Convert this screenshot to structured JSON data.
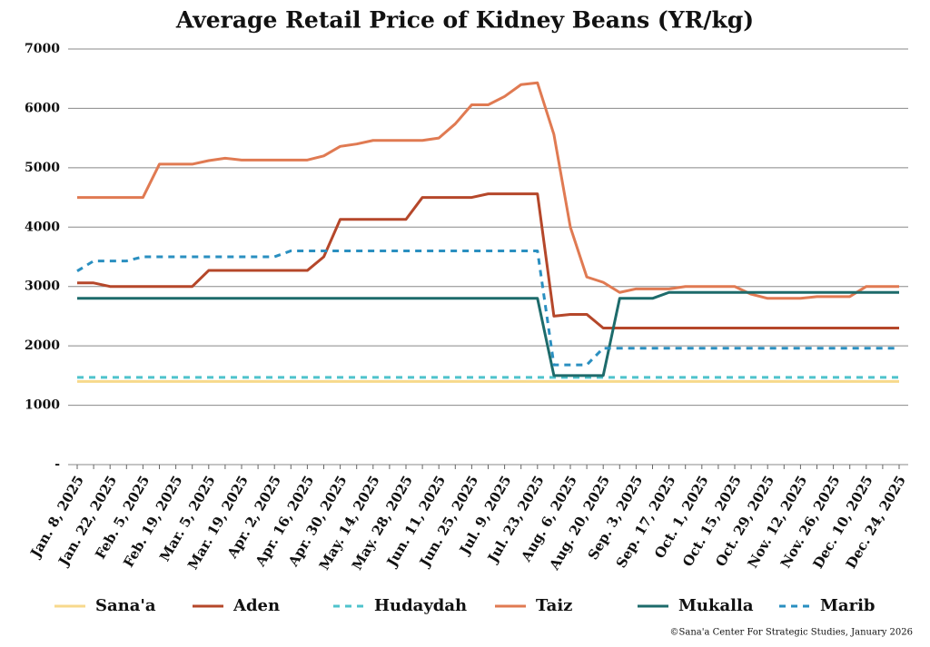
{
  "chart_data": {
    "type": "line",
    "title": "Average Retail Price of Kidney Beans (YR/kg)",
    "credit": "©Sana'a Center For Strategic Studies, January 2026",
    "categories": [
      "Jan. 8, 2025",
      null,
      "Jan. 22, 2025",
      null,
      "Feb. 5, 2025",
      null,
      "Feb. 19, 2025",
      null,
      "Mar. 5, 2025",
      null,
      "Mar. 19, 2025",
      null,
      "Apr. 2, 2025",
      null,
      "Apr. 16, 2025",
      null,
      "Apr. 30, 2025",
      null,
      "May. 14, 2025",
      null,
      "May. 28, 2025",
      null,
      "Jun. 11, 2025",
      null,
      "Jun. 25, 2025",
      null,
      "Jul. 9, 2025",
      null,
      "Jul. 23, 2025",
      null,
      "Aug. 6, 2025",
      null,
      "Aug. 20, 2025",
      null,
      "Sep. 3, 2025",
      null,
      "Sep. 17, 2025",
      null,
      "Oct. 1, 2025",
      null,
      "Oct. 15, 2025",
      null,
      "Oct. 29, 2025",
      null,
      "Nov. 12, 2025",
      null,
      "Nov. 26, 2025",
      null,
      "Dec. 10, 2025",
      null,
      "Dec. 24, 2025"
    ],
    "ylim": [
      0,
      7000
    ],
    "yticks": [
      {
        "value": 0,
        "label": "-"
      },
      1000,
      2000,
      3000,
      4000,
      5000,
      6000,
      7000
    ],
    "grid": true,
    "series": [
      {
        "name": "Sana'a",
        "color": "#f7d98c",
        "dashed": false,
        "values": [
          1400,
          1400,
          1400,
          1400,
          1400,
          1400,
          1400,
          1400,
          1400,
          1400,
          1400,
          1400,
          1400,
          1400,
          1400,
          1400,
          1400,
          1400,
          1400,
          1400,
          1400,
          1400,
          1400,
          1400,
          1400,
          1400,
          1400,
          1400,
          1400,
          1400,
          1400,
          1400,
          1400,
          1400,
          1400,
          1400,
          1400,
          1400,
          1400,
          1400,
          1400,
          1400,
          1400,
          1400,
          1400,
          1400,
          1400,
          1400,
          1400,
          1400,
          1400
        ]
      },
      {
        "name": "Aden",
        "color": "#b5472a",
        "dashed": false,
        "values": [
          3060,
          3060,
          3000,
          3000,
          3000,
          3000,
          3000,
          3000,
          3270,
          3270,
          3270,
          3270,
          3270,
          3270,
          3270,
          3500,
          4130,
          4130,
          4130,
          4130,
          4130,
          4500,
          4500,
          4500,
          4500,
          4560,
          4560,
          4560,
          4560,
          2500,
          2530,
          2530,
          2300,
          2300,
          2300,
          2300,
          2300,
          2300,
          2300,
          2300,
          2300,
          2300,
          2300,
          2300,
          2300,
          2300,
          2300,
          2300,
          2300,
          2300,
          2300
        ]
      },
      {
        "name": "Hudaydah",
        "color": "#4fc3cc",
        "dashed": true,
        "values": [
          1470,
          1470,
          1470,
          1470,
          1470,
          1470,
          1470,
          1470,
          1470,
          1470,
          1470,
          1470,
          1470,
          1470,
          1470,
          1470,
          1470,
          1470,
          1470,
          1470,
          1470,
          1470,
          1470,
          1470,
          1470,
          1470,
          1470,
          1470,
          1470,
          1470,
          1470,
          1470,
          1470,
          1470,
          1470,
          1470,
          1470,
          1470,
          1470,
          1470,
          1470,
          1470,
          1470,
          1470,
          1470,
          1470,
          1470,
          1470,
          1470,
          1470,
          1470
        ]
      },
      {
        "name": "Taiz",
        "color": "#e07a52",
        "dashed": false,
        "values": [
          4500,
          4500,
          4500,
          4500,
          4500,
          5060,
          5060,
          5060,
          5120,
          5160,
          5130,
          5130,
          5130,
          5130,
          5130,
          5200,
          5360,
          5400,
          5460,
          5460,
          5460,
          5460,
          5500,
          5740,
          6060,
          6060,
          6200,
          6400,
          6430,
          5560,
          4000,
          3160,
          3070,
          2900,
          2960,
          2960,
          2960,
          3000,
          3000,
          3000,
          3000,
          2870,
          2800,
          2800,
          2800,
          2830,
          2830,
          2830,
          3000,
          3000,
          3000
        ]
      },
      {
        "name": "Mukalla",
        "color": "#1d6b6b",
        "dashed": false,
        "values": [
          2800,
          2800,
          2800,
          2800,
          2800,
          2800,
          2800,
          2800,
          2800,
          2800,
          2800,
          2800,
          2800,
          2800,
          2800,
          2800,
          2800,
          2800,
          2800,
          2800,
          2800,
          2800,
          2800,
          2800,
          2800,
          2800,
          2800,
          2800,
          2800,
          1500,
          1500,
          1500,
          1500,
          2800,
          2800,
          2800,
          2900,
          2900,
          2900,
          2900,
          2900,
          2900,
          2900,
          2900,
          2900,
          2900,
          2900,
          2900,
          2900,
          2900,
          2900
        ]
      },
      {
        "name": "Marib",
        "color": "#2a8fc0",
        "dashed": true,
        "values": [
          3260,
          3430,
          3430,
          3430,
          3500,
          3500,
          3500,
          3500,
          3500,
          3500,
          3500,
          3500,
          3500,
          3600,
          3600,
          3600,
          3600,
          3600,
          3600,
          3600,
          3600,
          3600,
          3600,
          3600,
          3600,
          3600,
          3600,
          3600,
          3600,
          1680,
          1680,
          1680,
          1960,
          1960,
          1960,
          1960,
          1960,
          1960,
          1960,
          1960,
          1960,
          1960,
          1960,
          1960,
          1960,
          1960,
          1960,
          1960,
          1960,
          1960,
          1960
        ]
      }
    ]
  }
}
